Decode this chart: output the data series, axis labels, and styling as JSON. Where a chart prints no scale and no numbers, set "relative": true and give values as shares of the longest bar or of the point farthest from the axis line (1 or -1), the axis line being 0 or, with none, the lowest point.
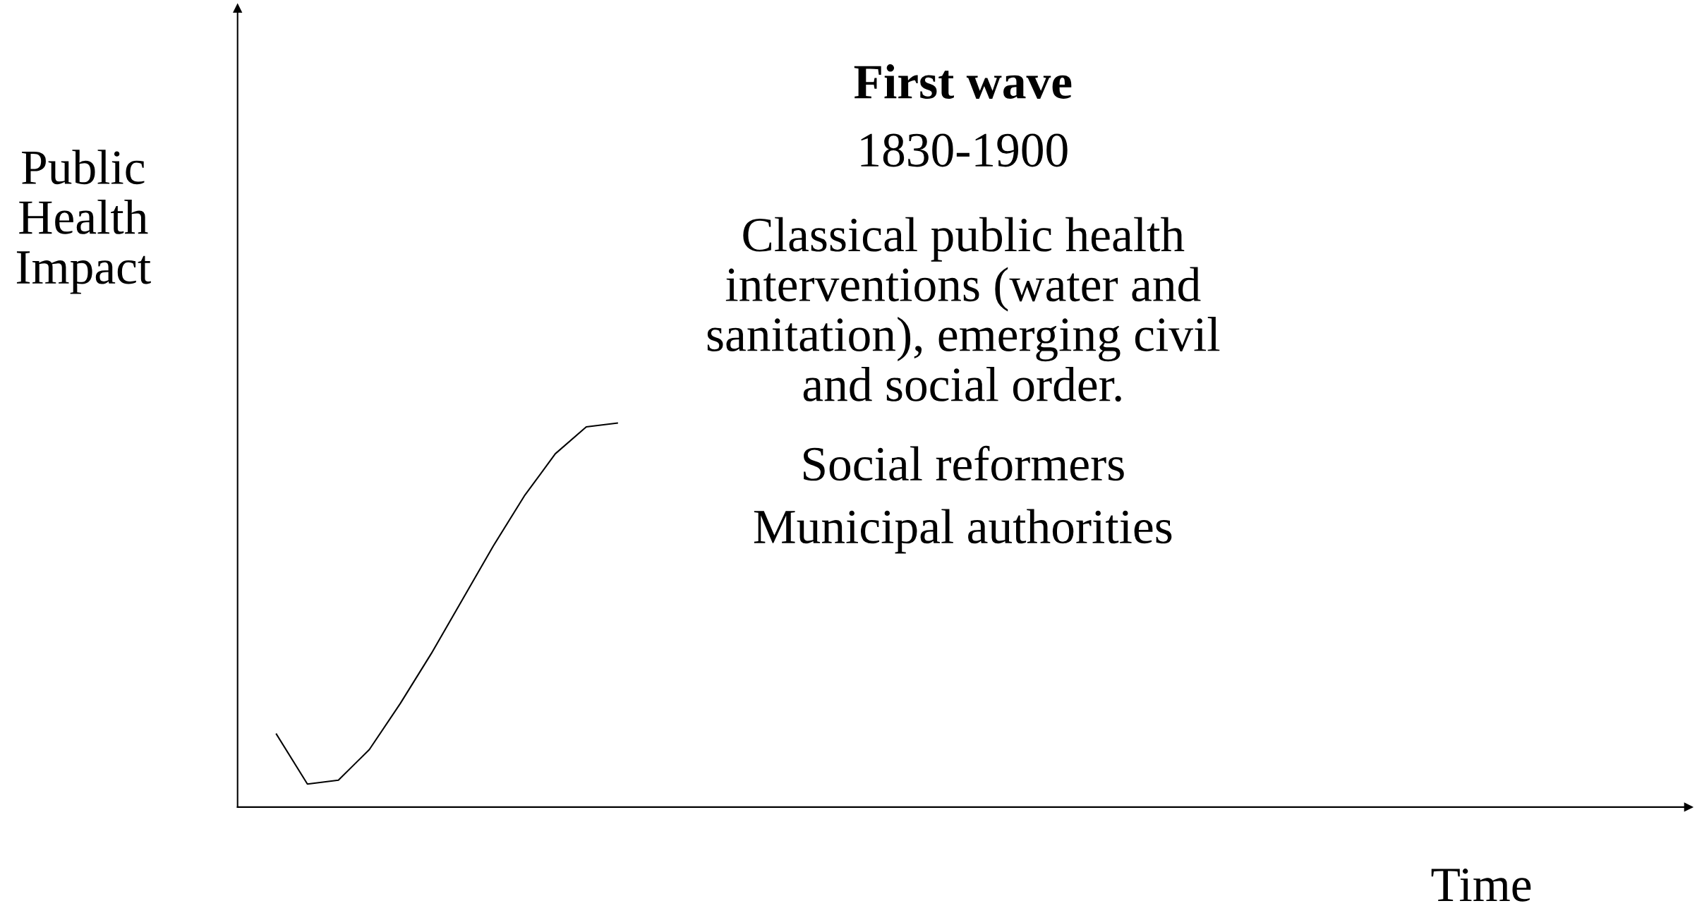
{
  "chart_data": {
    "type": "line",
    "relative": true,
    "title": "First wave",
    "ylabel": "Public\nHealth\nImpact",
    "annotations": [
      "1830-1900",
      "Classical public health\ninterventions (water and\nsanitation), emerging civil\nand social order.",
      "Social reformers",
      "Municipal authorities",
      "Time"
    ],
    "categories": [
      null,
      null,
      null,
      null,
      null,
      null,
      null,
      null,
      null,
      null,
      null,
      null
    ],
    "series": [
      {
        "color": "#000000",
        "values": [
          0.19,
          0.06,
          0.07,
          0.15,
          0.27,
          0.4,
          0.54,
          0.68,
          0.81,
          0.92,
          0.99,
          1.0
        ]
      }
    ],
    "grid": false,
    "legend": false,
    "marker": "none",
    "line_style": "solid"
  }
}
